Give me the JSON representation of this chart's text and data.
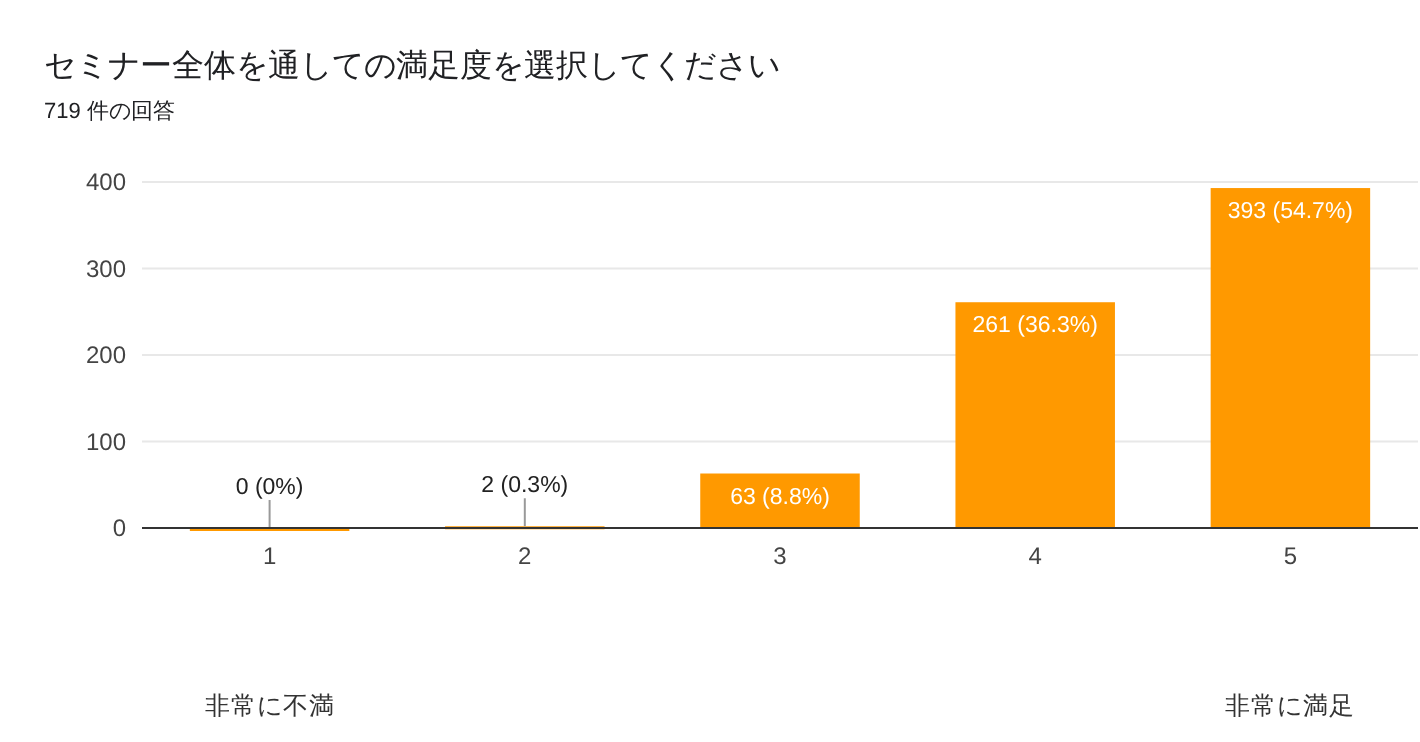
{
  "chart_data": {
    "type": "bar",
    "title": "セミナー全体を通しての満足度を選択してください",
    "subtitle": "719 件の回答",
    "categories": [
      "1",
      "2",
      "3",
      "4",
      "5"
    ],
    "values": [
      0,
      2,
      63,
      261,
      393
    ],
    "value_labels": [
      "0 (0%)",
      "2 (0.3%)",
      "63 (8.8%)",
      "261 (36.3%)",
      "393 (54.7%)"
    ],
    "color": "#ff9900",
    "ylim": [
      0,
      400
    ],
    "yticks": [
      0,
      100,
      200,
      300,
      400
    ],
    "grid": "y",
    "annotations": [
      "非常に不満",
      "非常に満足"
    ]
  }
}
